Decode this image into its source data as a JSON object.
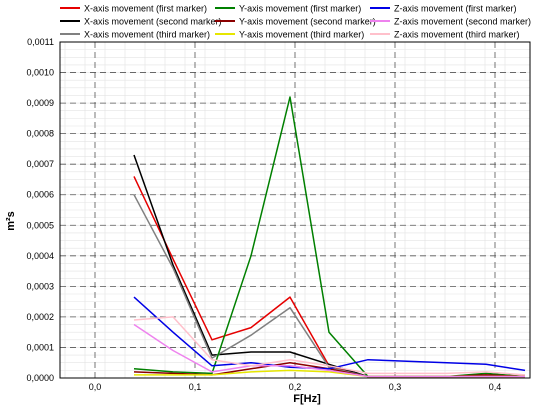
{
  "chart_data": {
    "type": "line",
    "title": "",
    "xlabel": "F[Hz]",
    "ylabel": "m²s",
    "xlim": [
      -0.035,
      0.435
    ],
    "ylim": [
      0,
      0.0011
    ],
    "x_ticks": [
      {
        "value": 0.0,
        "label": "0,0"
      },
      {
        "value": 0.1,
        "label": "0,1"
      },
      {
        "value": 0.2,
        "label": "0,2"
      },
      {
        "value": 0.3,
        "label": "0,3"
      },
      {
        "value": 0.4,
        "label": "0,4"
      }
    ],
    "y_ticks": [
      {
        "value": 0.0,
        "label": "0,0000"
      },
      {
        "value": 0.0001,
        "label": "0,0001"
      },
      {
        "value": 0.0002,
        "label": "0,0002"
      },
      {
        "value": 0.0003,
        "label": "0,0003"
      },
      {
        "value": 0.0004,
        "label": "0,0004"
      },
      {
        "value": 0.0005,
        "label": "0,0005"
      },
      {
        "value": 0.0006,
        "label": "0,0006"
      },
      {
        "value": 0.0007,
        "label": "0,0007"
      },
      {
        "value": 0.0008,
        "label": "0,0008"
      },
      {
        "value": 0.0009,
        "label": "0,0009"
      },
      {
        "value": 0.001,
        "label": "0,0010"
      },
      {
        "value": 0.0011,
        "label": "0,0011"
      }
    ],
    "grid": true,
    "legend_position": "top",
    "x": [
      0.039,
      0.078,
      0.117,
      0.156,
      0.195,
      0.234,
      0.273,
      0.312,
      0.352,
      0.391,
      0.43
    ],
    "series": [
      {
        "name": "X-axis movement (first marker)",
        "color": "#e60000",
        "values": [
          0.00066,
          0.00039,
          0.000125,
          0.000165,
          0.000265,
          4e-05,
          5e-06,
          5e-06,
          5e-06,
          5e-06,
          5e-06
        ]
      },
      {
        "name": "X-axis movement (second marker)",
        "color": "#000000",
        "values": [
          0.00073,
          0.00037,
          7.5e-05,
          8.5e-05,
          8.5e-05,
          4.5e-05,
          5e-06,
          5e-06,
          5e-06,
          5e-06,
          5e-06
        ]
      },
      {
        "name": "X-axis movement (third marker)",
        "color": "#808080",
        "values": [
          0.0006,
          0.00036,
          6.5e-05,
          0.00014,
          0.00023,
          3.5e-05,
          5e-06,
          5e-06,
          5e-06,
          5e-06,
          5e-06
        ]
      },
      {
        "name": "Y-axis movement (first marker)",
        "color": "#008000",
        "values": [
          3e-05,
          2e-05,
          1.5e-05,
          0.0004,
          0.00092,
          0.00015,
          5e-06,
          5e-06,
          5e-06,
          1.5e-05,
          5e-06
        ]
      },
      {
        "name": "Y-axis movement (second marker)",
        "color": "#8b0000",
        "values": [
          2e-05,
          1.5e-05,
          1e-05,
          3e-05,
          5e-05,
          3e-05,
          5e-06,
          5e-06,
          5e-06,
          1e-05,
          5e-06
        ]
      },
      {
        "name": "Y-axis movement (third marker)",
        "color": "#e6e600",
        "values": [
          1e-05,
          1e-05,
          1e-05,
          2e-05,
          2.5e-05,
          2e-05,
          5e-06,
          5e-06,
          5e-06,
          5e-06,
          5e-06
        ]
      },
      {
        "name": "Z-axis movement (first marker)",
        "color": "#0000e6",
        "values": [
          0.000265,
          0.00015,
          4e-05,
          5e-05,
          3.5e-05,
          3e-05,
          6e-05,
          5.5e-05,
          5e-05,
          4.5e-05,
          2.5e-05
        ]
      },
      {
        "name": "Z-axis movement (second marker)",
        "color": "#ee82ee",
        "values": [
          0.000175,
          9e-05,
          2e-05,
          4e-05,
          4e-05,
          2.5e-05,
          5e-06,
          5e-06,
          5e-06,
          5e-06,
          5e-06
        ]
      },
      {
        "name": "Z-axis movement (third marker)",
        "color": "#ffc0cb",
        "values": [
          0.00019,
          0.0002,
          6e-05,
          4e-05,
          6e-05,
          4e-05,
          1.5e-05,
          1.5e-05,
          1.5e-05,
          2e-05,
          1e-05
        ]
      }
    ]
  }
}
